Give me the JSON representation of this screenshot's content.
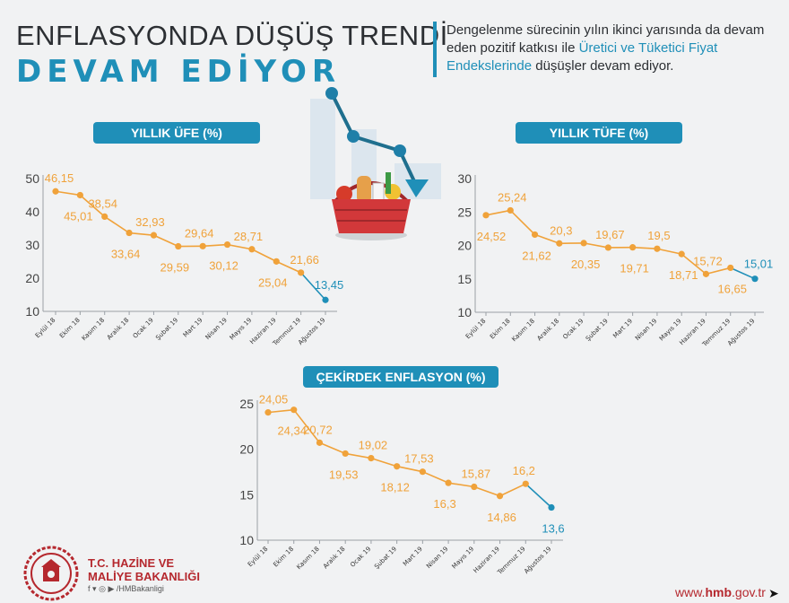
{
  "header": {
    "title_line1": "ENFLASYONDA DÜŞÜŞ TRENDİ",
    "title_line2": "DEVAM EDİYOR",
    "intro_plain": "Dengelenme sürecinin yılın ikinci yarısında da devam eden pozitif katkısı ile ",
    "intro_highlight": "Üretici ve Tüketici Fiyat Endekslerinde",
    "intro_end": " düşüşler devam ediyor."
  },
  "footer": {
    "org_line1": "T.C. HAZİNE VE",
    "org_line2": "MALİYE BAKANLIĞI",
    "social_handle": "/HMBakanligi",
    "website_plain": "www.",
    "website_bold": "hmb",
    "website_end": ".gov.tr"
  },
  "colors": {
    "accent": "#1f8fb8",
    "line": "#f0a23a",
    "brand_red": "#b5282e"
  },
  "chart_data": [
    {
      "type": "line",
      "title": "YILLIK ÜFE (%)",
      "categories": [
        "Eylül 18",
        "Ekim 18",
        "Kasım 18",
        "Aralık 18",
        "Ocak 19",
        "Şubat 19",
        "Mart 19",
        "Nisan 19",
        "Mayıs 19",
        "Haziran 19",
        "Temmuz 19",
        "Ağustos 19"
      ],
      "values": [
        46.15,
        45.01,
        38.54,
        33.64,
        32.93,
        29.59,
        29.64,
        30.12,
        28.71,
        25.04,
        21.66,
        13.45
      ],
      "labels": [
        "46,15",
        "45,01",
        "38,54",
        "33,64",
        "32,93",
        "29,59",
        "29,64",
        "30,12",
        "28,71",
        "25,04",
        "21,66",
        "13,45"
      ],
      "ylim": [
        10,
        50
      ],
      "yticks": [
        "10",
        "20",
        "30",
        "40",
        "50"
      ],
      "highlight_last": true
    },
    {
      "type": "line",
      "title": "YILLIK TÜFE (%)",
      "categories": [
        "Eylül 18",
        "Ekim 18",
        "Kasım 18",
        "Aralık 18",
        "Ocak 19",
        "Şubat 19",
        "Mart 19",
        "Nisan 19",
        "Mayıs 19",
        "Haziran 19",
        "Temmuz 19",
        "Ağustos 19"
      ],
      "values": [
        24.52,
        25.24,
        21.62,
        20.3,
        20.35,
        19.67,
        19.71,
        19.5,
        18.71,
        15.72,
        16.65,
        15.01
      ],
      "labels": [
        "24,52",
        "25,24",
        "21,62",
        "20,3",
        "20,35",
        "19,67",
        "19,71",
        "19,5",
        "18,71",
        "15,72",
        "16,65",
        "15,01"
      ],
      "ylim": [
        10,
        30
      ],
      "yticks": [
        "10",
        "15",
        "20",
        "25",
        "30"
      ],
      "highlight_last": true
    },
    {
      "type": "line",
      "title": "ÇEKİRDEK ENFLASYON (%)",
      "categories": [
        "Eylül 18",
        "Ekim 18",
        "Kasım 18",
        "Aralık 18",
        "Ocak 19",
        "Şubat 19",
        "Mart 19",
        "Nisan 19",
        "Mayıs 19",
        "Haziran 19",
        "Temmuz 19",
        "Ağustos 19"
      ],
      "values": [
        24.05,
        24.34,
        20.72,
        19.53,
        19.02,
        18.12,
        17.53,
        16.3,
        15.87,
        14.86,
        16.2,
        13.6
      ],
      "labels": [
        "24,05",
        "24,34",
        "20,72",
        "19,53",
        "19,02",
        "18,12",
        "17,53",
        "16,3",
        "15,87",
        "14,86",
        "16,2",
        "13,6"
      ],
      "ylim": [
        10,
        25
      ],
      "yticks": [
        "10",
        "15",
        "20",
        "25"
      ],
      "highlight_last": true
    }
  ]
}
